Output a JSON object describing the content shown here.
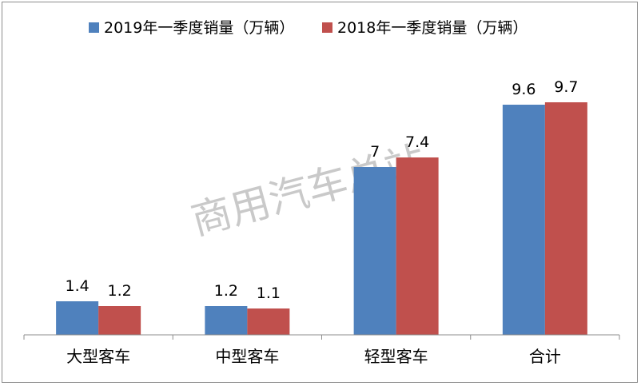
{
  "watermark": "商用汽车总站",
  "chart_data": {
    "type": "bar",
    "categories": [
      "大型客车",
      "中型客车",
      "轻型客车",
      "合计"
    ],
    "series": [
      {
        "name": "2019年一季度销量（万辆）",
        "color": "#4f81bd",
        "values": [
          1.4,
          1.2,
          7,
          9.6
        ]
      },
      {
        "name": "2018年一季度销量（万辆）",
        "color": "#c0504d",
        "values": [
          1.2,
          1.1,
          7.4,
          9.7
        ]
      }
    ],
    "value_labels": [
      [
        "1.4",
        "1.2",
        "7",
        "9.6"
      ],
      [
        "1.2",
        "1.1",
        "7.4",
        "9.7"
      ]
    ],
    "ylim": [
      0,
      10.6
    ],
    "grid": false,
    "legend": "top"
  }
}
